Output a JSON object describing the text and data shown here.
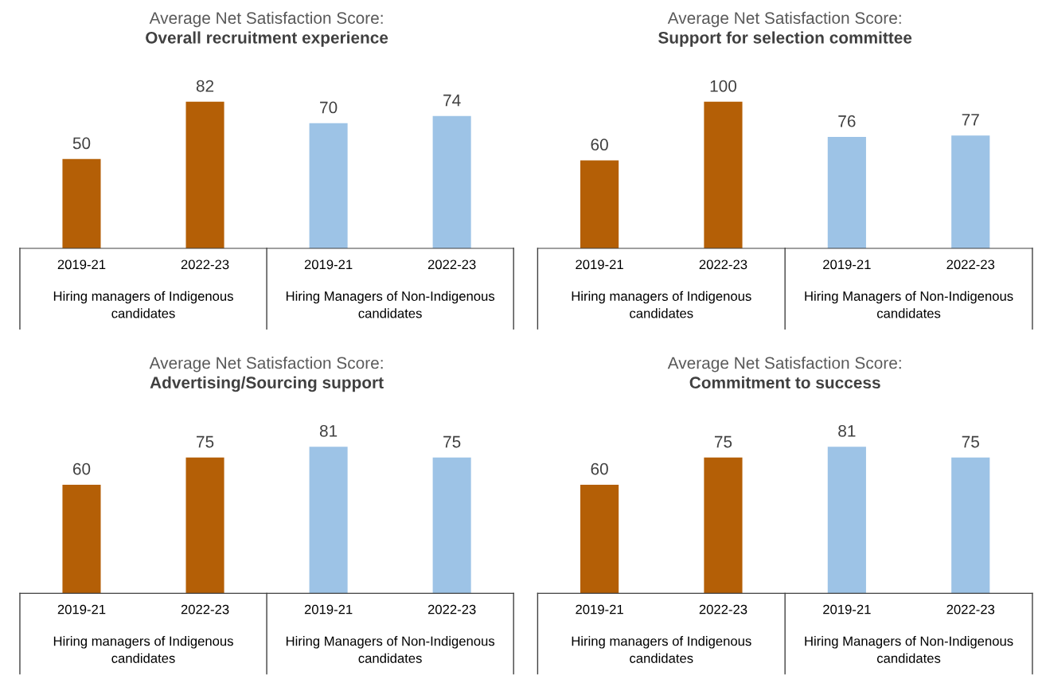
{
  "chart_data": [
    {
      "type": "bar",
      "title": "Average Net Satisfaction Score:",
      "subtitle": "Overall recruitment experience",
      "categories": [
        "2019-21",
        "2022-23",
        "2019-21",
        "2022-23"
      ],
      "values": [
        50,
        82,
        70,
        74
      ],
      "colors": [
        "#b45f06",
        "#b45f06",
        "#9dc3e6",
        "#9dc3e6"
      ],
      "data_labels": true,
      "annotations": [
        "Hiring managers of Indigenous candidates",
        "Hiring Managers of Non-Indigenous candidates"
      ]
    },
    {
      "type": "bar",
      "title": "Average Net Satisfaction Score:",
      "subtitle": "Support for selection committee",
      "categories": [
        "2019-21",
        "2022-23",
        "2019-21",
        "2022-23"
      ],
      "values": [
        60,
        100,
        76,
        77
      ],
      "colors": [
        "#b45f06",
        "#b45f06",
        "#9dc3e6",
        "#9dc3e6"
      ],
      "data_labels": true,
      "annotations": [
        "Hiring managers of Indigenous candidates",
        "Hiring Managers of Non-Indigenous candidates"
      ]
    },
    {
      "type": "bar",
      "title": "Average Net Satisfaction Score:",
      "subtitle": "Advertising/Sourcing support",
      "categories": [
        "2019-21",
        "2022-23",
        "2019-21",
        "2022-23"
      ],
      "values": [
        60,
        75,
        81,
        75
      ],
      "colors": [
        "#b45f06",
        "#b45f06",
        "#9dc3e6",
        "#9dc3e6"
      ],
      "data_labels": true,
      "annotations": [
        "Hiring managers of Indigenous candidates",
        "Hiring Managers of Non-Indigenous candidates"
      ]
    },
    {
      "type": "bar",
      "title": "Average Net Satisfaction Score:",
      "subtitle": "Commitment to success",
      "categories": [
        "2019-21",
        "2022-23",
        "2019-21",
        "2022-23"
      ],
      "values": [
        60,
        75,
        81,
        75
      ],
      "colors": [
        "#b45f06",
        "#b45f06",
        "#9dc3e6",
        "#9dc3e6"
      ],
      "data_labels": true,
      "annotations": [
        "Hiring managers of Indigenous candidates",
        "Hiring Managers of Non-Indigenous candidates"
      ]
    }
  ]
}
